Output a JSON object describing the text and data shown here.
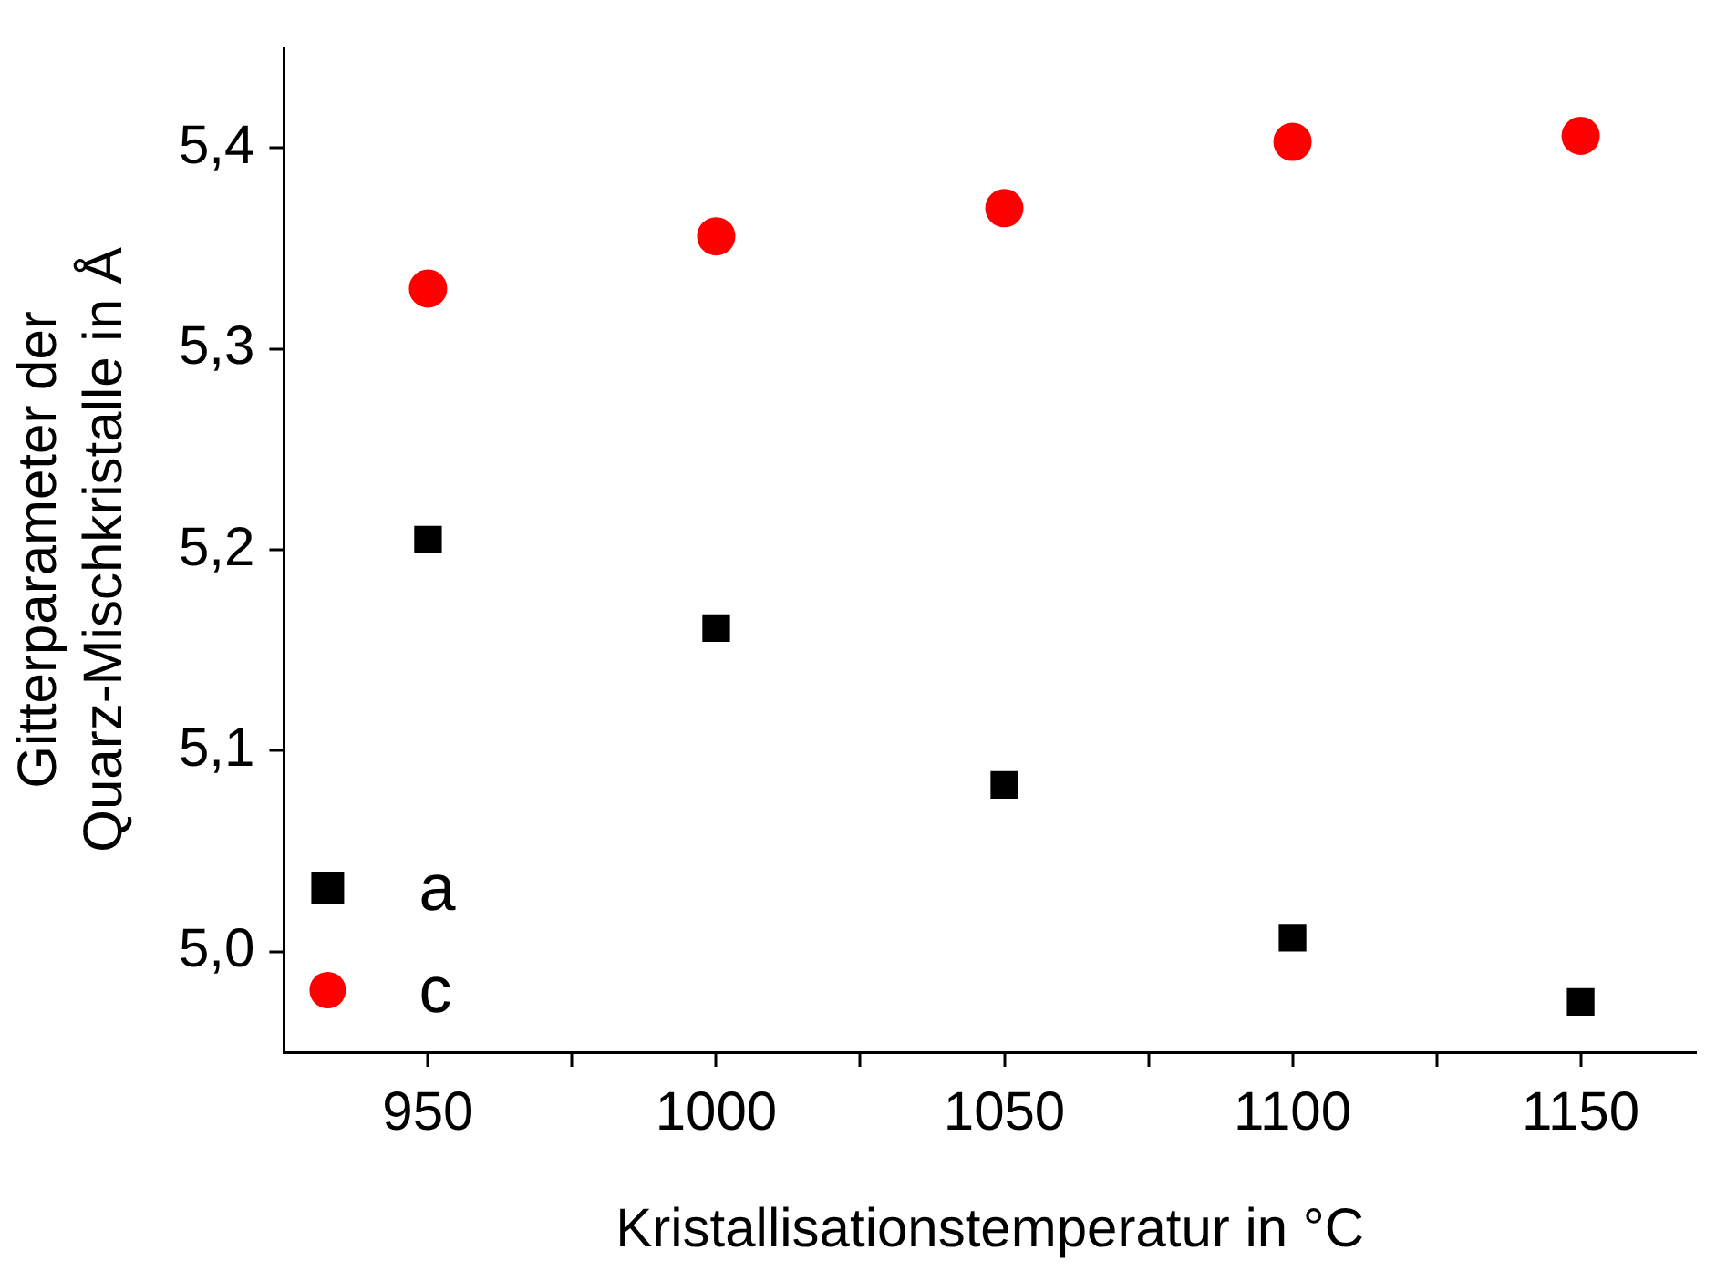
{
  "chart_data": {
    "type": "scatter",
    "xlabel": "Kristallisationstemperatur in °C",
    "ylabel": "Gitterparameter der\nQuarz-Mischkristalle in Å",
    "x": [
      950,
      1000,
      1050,
      1100,
      1150
    ],
    "series": [
      {
        "name": "a",
        "color": "#000000",
        "marker": "square",
        "values": [
          5.205,
          5.161,
          5.083,
          5.007,
          4.975
        ]
      },
      {
        "name": "c",
        "color": "#ff0000",
        "marker": "circle",
        "values": [
          5.33,
          5.356,
          5.37,
          5.403,
          5.406
        ]
      }
    ],
    "xlim": [
      925,
      1170
    ],
    "xticks": [
      950,
      {
        "value": 975,
        "label": null
      },
      1000,
      {
        "value": 1025,
        "label": null
      },
      1050,
      {
        "value": 1075,
        "label": null
      },
      1100,
      {
        "value": 1125,
        "label": null
      },
      1150
    ],
    "ylim": [
      4.95,
      5.45
    ],
    "yticks": [
      {
        "value": 5.0,
        "label": "5,0"
      },
      {
        "value": 5.1,
        "label": "5,1"
      },
      {
        "value": 5.2,
        "label": "5,2"
      },
      {
        "value": 5.3,
        "label": "5,3"
      },
      {
        "value": 5.4,
        "label": "5,4"
      }
    ],
    "legend": "bottom left",
    "grid": false
  }
}
